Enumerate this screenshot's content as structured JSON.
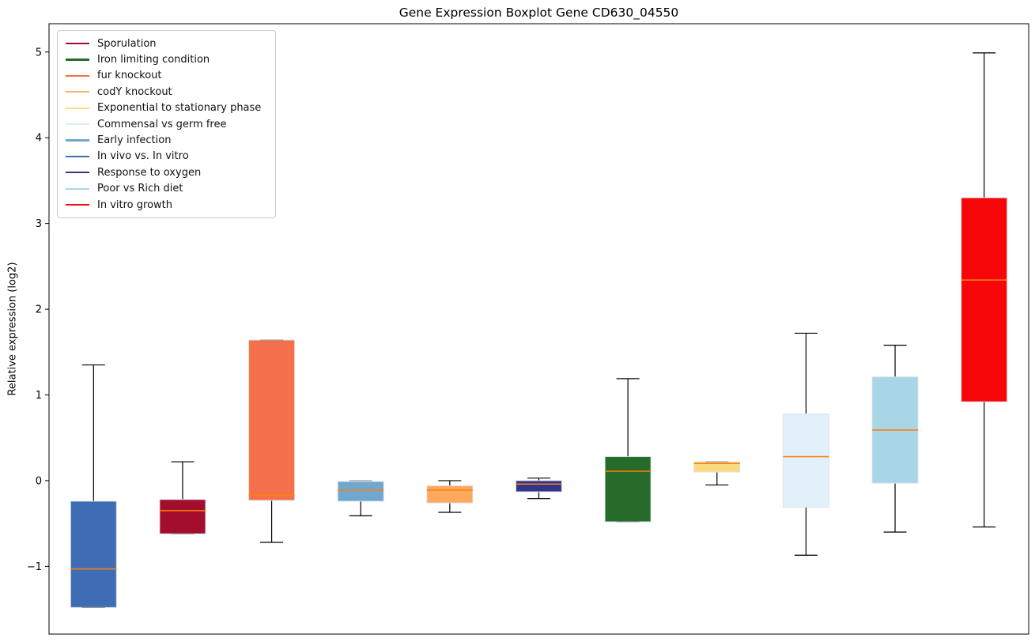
{
  "chart_data": {
    "type": "boxplot",
    "title": "Gene Expression Boxplot Gene CD630_04550",
    "ylabel": "Relative expression (log2)",
    "xlabel": "",
    "ylim": [
      -1.79,
      5.33
    ],
    "yticks": [
      -1,
      0,
      1,
      2,
      3,
      4,
      5
    ],
    "grid": false,
    "legend_position": "upper-left",
    "colors": {
      "median": "#ff7f0e",
      "whisker": "#000000",
      "axis": "#000000",
      "cap_overlap": "#999999",
      "background": "#ffffff",
      "legend_border": "#cccccc"
    },
    "series": [
      {
        "name": "In vivo vs. In vitro",
        "color": "#3e6db5",
        "whisker_low": -1.48,
        "q1": -1.48,
        "median": -1.03,
        "q3": -0.24,
        "whisker_high": 1.35
      },
      {
        "name": "Sporulation",
        "color": "#a30d2e",
        "whisker_low": -0.62,
        "q1": -0.62,
        "median": -0.35,
        "q3": -0.22,
        "whisker_high": 0.22
      },
      {
        "name": "fur knockout",
        "color": "#f4704a",
        "whisker_low": -0.72,
        "q1": -0.23,
        "median": -0.17,
        "q3": 1.64,
        "whisker_high": 1.64
      },
      {
        "name": "Early infection",
        "color": "#6fa7ce",
        "whisker_low": -0.41,
        "q1": -0.24,
        "median": -0.11,
        "q3": -0.01,
        "whisker_high": 0.0
      },
      {
        "name": "codY knockout",
        "color": "#ffa95e",
        "whisker_low": -0.37,
        "q1": -0.26,
        "median": -0.11,
        "q3": -0.06,
        "whisker_high": 0.0
      },
      {
        "name": "Response to oxygen",
        "color": "#32358e",
        "whisker_low": -0.21,
        "q1": -0.13,
        "median": -0.04,
        "q3": 0.0,
        "whisker_high": 0.03
      },
      {
        "name": "Iron limiting condition",
        "color": "#266b2a",
        "whisker_low": -0.48,
        "q1": -0.48,
        "median": 0.11,
        "q3": 0.28,
        "whisker_high": 1.19
      },
      {
        "name": "Exponential to stationary phase",
        "color": "#fbda7f",
        "whisker_low": -0.05,
        "q1": 0.1,
        "median": 0.2,
        "q3": 0.22,
        "whisker_high": 0.22
      },
      {
        "name": "Commensal vs germ free",
        "color": "#e1f0f9",
        "whisker_low": -0.87,
        "q1": -0.31,
        "median": 0.28,
        "q3": 0.78,
        "whisker_high": 1.72
      },
      {
        "name": "Poor vs Rich diet",
        "color": "#a9d6e6",
        "whisker_low": -0.6,
        "q1": -0.03,
        "median": 0.59,
        "q3": 1.21,
        "whisker_high": 1.58
      },
      {
        "name": "In vitro growth",
        "color": "#f60509",
        "whisker_low": -0.54,
        "q1": 0.92,
        "median": 2.34,
        "q3": 3.3,
        "whisker_high": 4.99
      }
    ],
    "legend": [
      {
        "label": "Sporulation",
        "color": "#a30d2e"
      },
      {
        "label": "Iron limiting condition",
        "color": "#266b2a"
      },
      {
        "label": "fur knockout",
        "color": "#f4704a"
      },
      {
        "label": "codY knockout",
        "color": "#ffb066"
      },
      {
        "label": "Exponential to stationary phase",
        "color": "#fbda7f"
      },
      {
        "label": "Commensal vs germ free",
        "color": "#ddeef7"
      },
      {
        "label": "Early infection",
        "color": "#6fa7ce"
      },
      {
        "label": "In vivo vs. In vitro",
        "color": "#3e6db5"
      },
      {
        "label": "Response to oxygen",
        "color": "#32358e"
      },
      {
        "label": "Poor vs Rich diet",
        "color": "#a9d6e6"
      },
      {
        "label": "In vitro growth",
        "color": "#ec1212"
      }
    ]
  }
}
